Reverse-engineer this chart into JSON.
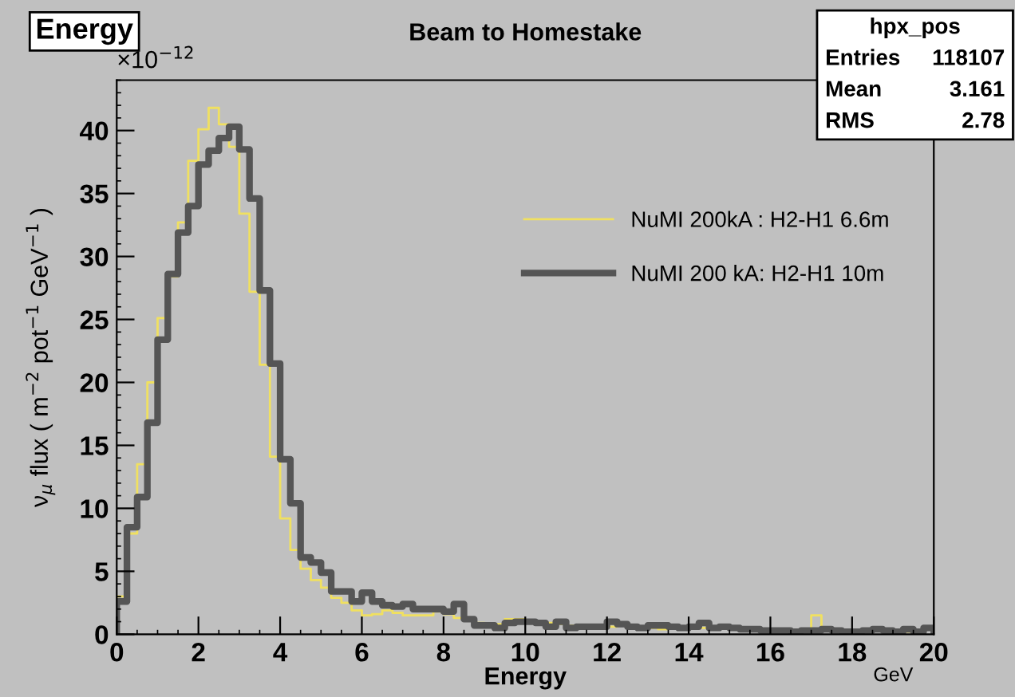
{
  "chart_data": {
    "type": "histogram",
    "title": "Beam to Homestake",
    "xlabel": "Energy",
    "ylabel": "ν$_{μ}$ flux ( m$^{−2}$ pot$^{−1}$ GeV$^{−1}$ )",
    "annotations": [
      "Energy",
      "×10$^{−12}$",
      "GeV",
      "hpx_pos",
      "Entries",
      "118107",
      "Mean",
      "3.161",
      "RMS",
      "2.78"
    ],
    "bins": [
      0,
      0.25,
      0.5,
      0.75,
      1,
      1.25,
      1.5,
      1.75,
      2,
      2.25,
      2.5,
      2.75,
      3,
      3.25,
      3.5,
      3.75,
      4,
      4.25,
      4.5,
      4.75,
      5,
      5.25,
      5.5,
      5.75,
      6,
      6.25,
      6.5,
      6.75,
      7,
      7.25,
      7.5,
      7.75,
      8,
      8.25,
      8.5,
      8.75,
      9,
      9.25,
      9.5,
      9.75,
      10,
      10.25,
      10.5,
      10.75,
      11,
      11.25,
      11.5,
      11.75,
      12,
      12.25,
      12.5,
      12.75,
      13,
      13.25,
      13.5,
      13.75,
      14,
      14.25,
      14.5,
      14.75,
      15,
      15.25,
      15.5,
      15.75,
      16,
      16.25,
      16.5,
      16.75,
      17,
      17.25,
      17.5,
      17.75,
      18,
      18.25,
      18.5,
      18.75,
      19,
      19.25,
      19.5,
      19.75,
      20
    ],
    "series": [
      {
        "name": "NuMI 200kA : H2-H1 6.6m",
        "color": "#f0e060",
        "values": [
          3.0,
          8.0,
          13.5,
          20.0,
          25.1,
          28.4,
          32.7,
          37.6,
          40.1,
          41.8,
          40.5,
          38.7,
          33.4,
          27.2,
          21.4,
          14.1,
          9.2,
          6.7,
          5.2,
          4.3,
          3.7,
          2.9,
          2.5,
          1.9,
          1.5,
          1.6,
          1.9,
          1.7,
          1.5,
          1.5,
          1.5,
          1.8,
          1.6,
          1.3,
          1.2,
          0.9,
          0.8,
          0.8,
          1.2,
          1.2,
          1.0,
          0.9,
          0.9,
          0.8,
          0.7,
          0.7,
          0.6,
          0.6,
          0.6,
          0.7,
          0.6,
          0.5,
          0.5,
          0.4,
          0.5,
          0.6,
          0.6,
          0.5,
          0.4,
          0.5,
          0.4,
          0.4,
          0.5,
          0.4,
          0.2,
          0.3,
          0.3,
          0.2,
          1.5,
          0.3,
          0.2,
          0.3,
          0.2,
          0.3,
          0.4,
          0.3,
          0.3,
          0.2,
          0.3,
          0.4
        ]
      },
      {
        "name": "NuMI 200 kA: H2-H1 10m",
        "color": "#555555",
        "values": [
          2.6,
          8.5,
          10.9,
          16.8,
          23.4,
          28.6,
          31.9,
          34.0,
          37.3,
          38.4,
          39.4,
          40.3,
          38.5,
          34.6,
          27.3,
          21.5,
          13.9,
          10.4,
          6.1,
          5.7,
          4.9,
          3.4,
          3.4,
          2.6,
          3.3,
          2.6,
          2.3,
          2.2,
          2.4,
          2.0,
          2.0,
          2.0,
          1.8,
          2.4,
          1.2,
          0.7,
          0.7,
          0.5,
          0.9,
          1.0,
          1.0,
          0.9,
          0.6,
          1.0,
          0.5,
          0.6,
          0.6,
          0.6,
          1.0,
          0.8,
          0.6,
          0.5,
          0.7,
          0.7,
          0.6,
          0.5,
          0.6,
          0.9,
          0.5,
          0.6,
          0.5,
          0.4,
          0.4,
          0.3,
          0.3,
          0.3,
          0.2,
          0.3,
          0.3,
          0.4,
          0.3,
          0.2,
          0.2,
          0.3,
          0.4,
          0.3,
          0.2,
          0.4,
          0.2,
          0.5
        ]
      }
    ],
    "xlim": [
      0,
      20
    ],
    "ylim": [
      0,
      44
    ],
    "xticks": [
      0,
      2,
      4,
      6,
      8,
      10,
      12,
      14,
      16,
      18,
      20
    ],
    "yticks": [
      0,
      5,
      10,
      15,
      20,
      25,
      30,
      35,
      40
    ],
    "grid": false,
    "legend": "top right"
  }
}
